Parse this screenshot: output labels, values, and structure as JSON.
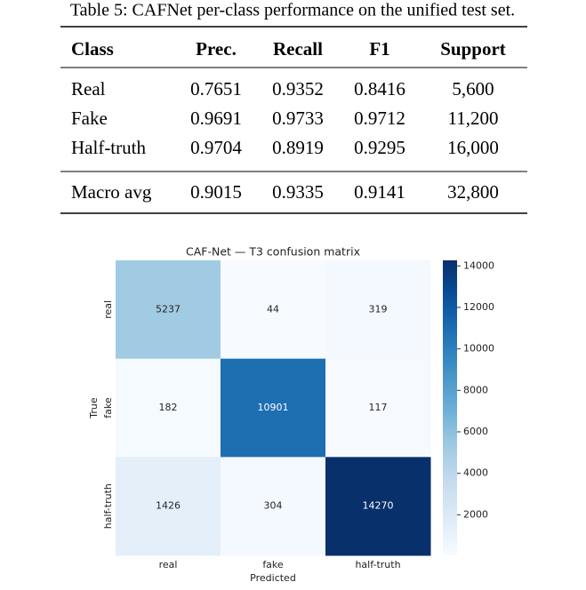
{
  "caption": "Table 5: CAFNet per-class performance on the unified test set.",
  "table": {
    "header": [
      "Class",
      "Prec.",
      "Recall",
      "F1",
      "Support"
    ],
    "rows": [
      [
        "Real",
        "0.7651",
        "0.9352",
        "0.8416",
        "5,600"
      ],
      [
        "Fake",
        "0.9691",
        "0.9733",
        "0.9712",
        "11,200"
      ],
      [
        "Half-truth",
        "0.9704",
        "0.8919",
        "0.9295",
        "16,000"
      ]
    ],
    "summary_row": [
      "Macro avg",
      "0.9015",
      "0.9335",
      "0.9141",
      "32,800"
    ]
  },
  "chart_data": {
    "type": "heatmap",
    "title": "CAF-Net — T3 confusion matrix",
    "x_label": "Predicted",
    "y_label": "True",
    "x_categories": [
      "real",
      "fake",
      "half-truth"
    ],
    "y_categories": [
      "real",
      "fake",
      "half-truth"
    ],
    "values": [
      [
        5237,
        44,
        319
      ],
      [
        182,
        10901,
        117
      ],
      [
        1426,
        304,
        14270
      ]
    ],
    "colormap": "Blues",
    "clim": [
      44,
      14270
    ],
    "cbar_ticks": [
      2000,
      4000,
      6000,
      8000,
      10000,
      12000,
      14000
    ]
  }
}
